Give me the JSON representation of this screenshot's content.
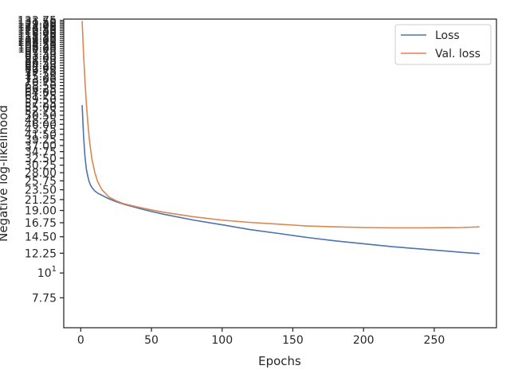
{
  "chart_data": {
    "type": "line",
    "xlabel": "Epochs",
    "ylabel": "Negative log-likelihood",
    "yscale": "log",
    "xlim": [
      -12,
      294
    ],
    "ylim": [
      5.7,
      135.5
    ],
    "xticks": [
      0,
      50,
      100,
      150,
      200,
      250
    ],
    "xtick_labels": [
      "0",
      "50",
      "100",
      "150",
      "200",
      "250"
    ],
    "yticks": [
      7.75,
      10,
      12.25,
      14.5,
      16.75,
      19,
      21.25,
      23.5,
      25.75,
      28,
      30.25,
      32.5,
      34.75,
      37,
      39.25,
      41.5,
      43.75,
      46,
      48.25,
      50.5,
      52.75,
      55,
      57.25,
      59.5,
      61.75,
      64,
      66.25,
      68.5,
      70.75,
      73,
      75.25,
      77.5,
      79.75,
      82,
      84.25,
      86.5,
      88.75,
      91,
      93.25,
      95.5,
      97.75,
      100,
      102.25,
      104.5,
      106.75,
      109,
      111.25,
      113.5,
      115.75,
      118,
      120.25,
      122.5,
      124.75,
      127,
      129.25,
      131.5,
      133.75
    ],
    "ytick_labels": [
      "7.75",
      "10^1",
      "12.25",
      "14.50",
      "16.75",
      "19.00",
      "21.25",
      "23.50",
      "25.75",
      "28.00",
      "30.25",
      "32.50",
      "34.75",
      "37.00",
      "39.25",
      "41.50",
      "43.75",
      "46.00",
      "48.25",
      "50.50",
      "52.75",
      "55.00",
      "57.25",
      "59.50",
      "61.75",
      "64.00",
      "66.25",
      "68.50",
      "70.75",
      "73.00",
      "75.25",
      "77.50",
      "79.75",
      "82.00",
      "84.25",
      "86.50",
      "88.75",
      "91.00",
      "93.25",
      "95.50",
      "97.75",
      "100.00",
      "102.25",
      "104.50",
      "106.75",
      "109.00",
      "111.25",
      "113.50",
      "115.75",
      "118.00",
      "120.25",
      "122.50",
      "124.75",
      "127.00",
      "129.25",
      "131.50",
      "133.75"
    ],
    "grid": false,
    "legend_position": "top-right",
    "series": [
      {
        "name": "Loss",
        "color": "#4c72b0",
        "x": [
          1,
          2,
          3,
          4,
          5,
          6,
          7,
          8,
          10,
          12,
          15,
          20,
          25,
          30,
          40,
          50,
          60,
          80,
          100,
          120,
          140,
          160,
          180,
          200,
          220,
          240,
          260,
          270,
          282
        ],
        "y": [
          56,
          41,
          33,
          29,
          27,
          25.5,
          24.6,
          24,
          23.2,
          22.7,
          22.2,
          21.4,
          20.8,
          20.3,
          19.5,
          18.8,
          18.2,
          17.2,
          16.4,
          15.6,
          15.0,
          14.4,
          13.9,
          13.5,
          13.1,
          12.8,
          12.5,
          12.35,
          12.2
        ]
      },
      {
        "name": "Val. loss",
        "color": "#dd8452",
        "x": [
          1,
          2,
          3,
          4,
          5,
          6,
          7,
          8,
          10,
          12,
          15,
          20,
          25,
          30,
          40,
          50,
          60,
          80,
          100,
          120,
          140,
          160,
          180,
          200,
          220,
          240,
          260,
          270,
          282
        ],
        "y": [
          133,
          95,
          72,
          57,
          47,
          40,
          35.5,
          32,
          28,
          25.5,
          23.5,
          21.8,
          21.0,
          20.4,
          19.7,
          19.1,
          18.6,
          17.8,
          17.2,
          16.8,
          16.5,
          16.2,
          16.05,
          15.95,
          15.9,
          15.9,
          15.92,
          15.95,
          16.05
        ]
      }
    ]
  }
}
